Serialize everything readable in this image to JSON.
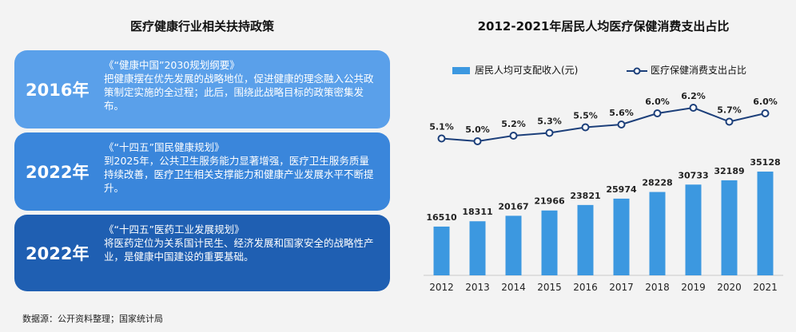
{
  "left": {
    "title": "医疗健康行业相关扶持政策",
    "cards": [
      {
        "year": "2016年",
        "heading": "《“健康中国”2030规划纲要》",
        "body": "把健康摆在优先发展的战略地位，促进健康的理念融入公共政策制定实施的全过程；此后，围绕此战略目标的政策密集发布。"
      },
      {
        "year": "2022年",
        "heading": "《“十四五”国民健康规划》",
        "body": "到2025年，公共卫生服务能力显著增强，医疗卫生服务质量持续改善，医疗卫生相关支撑能力和健康产业发展水平不断提升。"
      },
      {
        "year": "2022年",
        "heading": "《“十四五”医药工业发展规划》",
        "body": "将医药定位为关系国计民生、经济发展和国家安全的战略性产业，是健康中国建设的重要基础。"
      }
    ]
  },
  "source": "数据源：公开资料整理；国家统计局",
  "chart_data": {
    "type": "bar",
    "title": "2012-2021年居民人均医疗保健消费支出占比",
    "categories": [
      "2012",
      "2013",
      "2014",
      "2015",
      "2016",
      "2017",
      "2018",
      "2019",
      "2020",
      "2021"
    ],
    "series": [
      {
        "name": "居民人均可支配收入(元)",
        "type": "bar",
        "values": [
          16510,
          18311,
          20167,
          21966,
          23821,
          25974,
          28228,
          30733,
          32189,
          35128
        ],
        "color": "#3c98e0"
      },
      {
        "name": "医疗保健消费支出占比",
        "type": "line",
        "values": [
          5.1,
          5.0,
          5.2,
          5.3,
          5.5,
          5.6,
          6.0,
          6.2,
          5.7,
          6.0
        ],
        "labels": [
          "5.1%",
          "5.0%",
          "5.2%",
          "5.3%",
          "5.5%",
          "5.6%",
          "6.0%",
          "6.2%",
          "5.7%",
          "6.0%"
        ],
        "color": "#1c3f7a"
      }
    ],
    "legend_position": "top-left",
    "grid": false
  }
}
